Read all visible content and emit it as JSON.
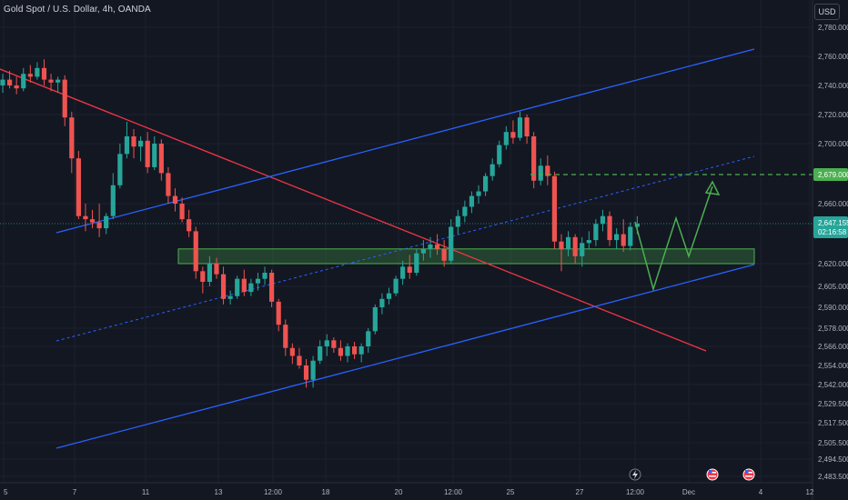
{
  "header": {
    "symbol": "Gold Spot / U.S. Dollar, 4h, OANDA",
    "currency": "USD"
  },
  "chart_data": {
    "type": "candlestick",
    "instrument": "Gold Spot / U.S. Dollar",
    "timeframe": "4h",
    "broker": "OANDA",
    "y_axis_ticks": [
      2780,
      2760,
      2740,
      2720,
      2700,
      2679,
      2660,
      2647.155,
      2620,
      2605,
      2590,
      2578,
      2566,
      2554,
      2542,
      2529.5,
      2517.5,
      2505.5,
      2494.5,
      2483.5
    ],
    "y_tick_labels": [
      "2,780.000",
      "2,760.000",
      "2,740.000",
      "2,720.000",
      "2,700.000",
      "2,679.000",
      "2,660.000",
      "2,647.155",
      "2,620.000",
      "2,605.000",
      "2,590.000",
      "2,578.000",
      "2,566.000",
      "2,554.000",
      "2,542.000",
      "2,529.500",
      "2,517.500",
      "2,505.500",
      "2,494.500",
      "2,483.500"
    ],
    "x_tick_labels": [
      "5",
      "7",
      "11",
      "13",
      "12:00",
      "18",
      "20",
      "12:00",
      "25",
      "27",
      "12:00",
      "Dec",
      "4",
      "12"
    ],
    "current_price": {
      "label": "2,647.155",
      "countdown": "02:16:58",
      "color": "#26a69a"
    },
    "target_price": {
      "label": "2,679.000",
      "color": "#4caf50"
    },
    "candles": [
      [
        2740,
        2748,
        2735,
        2744
      ],
      [
        2744,
        2750,
        2738,
        2740
      ],
      [
        2740,
        2746,
        2734,
        2738
      ],
      [
        2738,
        2752,
        2736,
        2748
      ],
      [
        2748,
        2754,
        2742,
        2746
      ],
      [
        2746,
        2756,
        2744,
        2752
      ],
      [
        2752,
        2758,
        2740,
        2744
      ],
      [
        2744,
        2748,
        2736,
        2742
      ],
      [
        2742,
        2746,
        2735,
        2744
      ],
      [
        2744,
        2747,
        2712,
        2718
      ],
      [
        2718,
        2722,
        2680,
        2690
      ],
      [
        2690,
        2695,
        2650,
        2652
      ],
      [
        2652,
        2660,
        2642,
        2650
      ],
      [
        2650,
        2656,
        2644,
        2648
      ],
      [
        2648,
        2660,
        2638,
        2644
      ],
      [
        2644,
        2654,
        2640,
        2652
      ],
      [
        2652,
        2680,
        2650,
        2672
      ],
      [
        2672,
        2700,
        2670,
        2693
      ],
      [
        2693,
        2715,
        2690,
        2705
      ],
      [
        2705,
        2710,
        2690,
        2698
      ],
      [
        2698,
        2705,
        2688,
        2702
      ],
      [
        2702,
        2708,
        2680,
        2684
      ],
      [
        2684,
        2705,
        2682,
        2700
      ],
      [
        2700,
        2703,
        2675,
        2680
      ],
      [
        2680,
        2684,
        2660,
        2665
      ],
      [
        2665,
        2670,
        2655,
        2660
      ],
      [
        2660,
        2664,
        2648,
        2650
      ],
      [
        2650,
        2656,
        2638,
        2642
      ],
      [
        2642,
        2645,
        2610,
        2615
      ],
      [
        2615,
        2618,
        2600,
        2608
      ],
      [
        2608,
        2625,
        2605,
        2620
      ],
      [
        2620,
        2624,
        2610,
        2613
      ],
      [
        2613,
        2618,
        2592,
        2596
      ],
      [
        2596,
        2602,
        2592,
        2598
      ],
      [
        2598,
        2612,
        2596,
        2610
      ],
      [
        2610,
        2616,
        2598,
        2601
      ],
      [
        2601,
        2610,
        2598,
        2607
      ],
      [
        2607,
        2614,
        2602,
        2610
      ],
      [
        2610,
        2618,
        2606,
        2614
      ],
      [
        2614,
        2616,
        2590,
        2594
      ],
      [
        2594,
        2596,
        2576,
        2580
      ],
      [
        2580,
        2583,
        2560,
        2565
      ],
      [
        2565,
        2568,
        2555,
        2560
      ],
      [
        2560,
        2565,
        2552,
        2554
      ],
      [
        2554,
        2558,
        2540,
        2545
      ],
      [
        2545,
        2560,
        2540,
        2557
      ],
      [
        2557,
        2570,
        2555,
        2566
      ],
      [
        2566,
        2574,
        2560,
        2570
      ],
      [
        2570,
        2572,
        2562,
        2565
      ],
      [
        2565,
        2570,
        2557,
        2560
      ],
      [
        2560,
        2568,
        2556,
        2566
      ],
      [
        2566,
        2569,
        2558,
        2561
      ],
      [
        2561,
        2568,
        2556,
        2566
      ],
      [
        2566,
        2578,
        2562,
        2576
      ],
      [
        2576,
        2592,
        2574,
        2590
      ],
      [
        2590,
        2600,
        2586,
        2596
      ],
      [
        2596,
        2604,
        2592,
        2600
      ],
      [
        2600,
        2612,
        2598,
        2610
      ],
      [
        2610,
        2622,
        2606,
        2618
      ],
      [
        2618,
        2626,
        2610,
        2614
      ],
      [
        2614,
        2630,
        2612,
        2627
      ],
      [
        2627,
        2636,
        2622,
        2630
      ],
      [
        2630,
        2638,
        2624,
        2633
      ],
      [
        2633,
        2640,
        2626,
        2630
      ],
      [
        2630,
        2636,
        2618,
        2622
      ],
      [
        2622,
        2650,
        2620,
        2645
      ],
      [
        2645,
        2656,
        2640,
        2652
      ],
      [
        2652,
        2662,
        2648,
        2658
      ],
      [
        2658,
        2668,
        2654,
        2665
      ],
      [
        2665,
        2672,
        2660,
        2668
      ],
      [
        2668,
        2680,
        2665,
        2678
      ],
      [
        2678,
        2690,
        2675,
        2686
      ],
      [
        2686,
        2702,
        2684,
        2699
      ],
      [
        2699,
        2712,
        2696,
        2708
      ],
      [
        2708,
        2716,
        2700,
        2704
      ],
      [
        2704,
        2722,
        2702,
        2718
      ],
      [
        2718,
        2720,
        2700,
        2705
      ],
      [
        2705,
        2708,
        2670,
        2675
      ],
      [
        2675,
        2690,
        2672,
        2685
      ],
      [
        2685,
        2692,
        2672,
        2678
      ],
      [
        2678,
        2681,
        2630,
        2635
      ],
      [
        2635,
        2640,
        2615,
        2630
      ],
      [
        2630,
        2642,
        2625,
        2638
      ],
      [
        2638,
        2640,
        2620,
        2625
      ],
      [
        2625,
        2638,
        2618,
        2634
      ],
      [
        2634,
        2642,
        2630,
        2636
      ],
      [
        2636,
        2650,
        2632,
        2647
      ],
      [
        2647,
        2656,
        2642,
        2652
      ],
      [
        2652,
        2655,
        2632,
        2636
      ],
      [
        2636,
        2644,
        2630,
        2640
      ],
      [
        2640,
        2650,
        2628,
        2632
      ],
      [
        2632,
        2648,
        2629,
        2645
      ],
      [
        2645,
        2652,
        2640,
        2647.155
      ]
    ],
    "support_zone": [
      2620,
      2630
    ],
    "annotations": {
      "ascending_channel": "blue parallel channel",
      "descending_trendline": "red",
      "midline": "blue dotted",
      "projected_path": "green zig-zag arrow toward 2,679.000"
    },
    "bullish_color": "#26a69a",
    "bearish_color": "#ef5350"
  },
  "events": {
    "items": [
      {
        "name": "lightning-event-icon"
      },
      {
        "name": "us-flag-event-icon"
      },
      {
        "name": "us-flag-event-icon"
      }
    ]
  }
}
